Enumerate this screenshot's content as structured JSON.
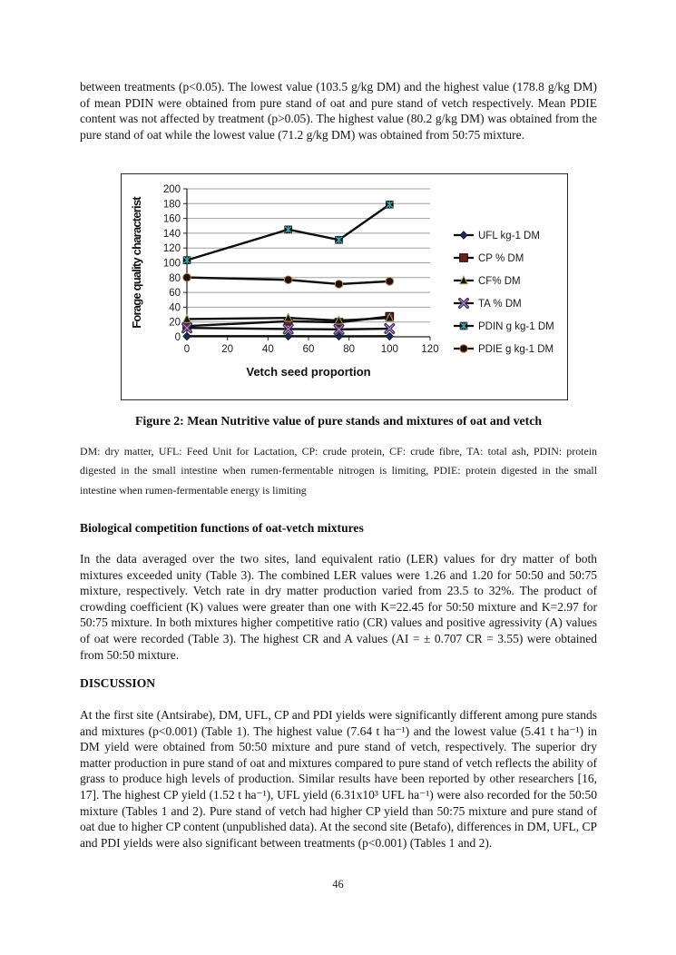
{
  "page": {
    "number": "46"
  },
  "paragraphs": {
    "p1": "between treatments (p<0.05). The lowest value (103.5 g/kg DM) and the highest value (178.8 g/kg DM) of mean PDIN were obtained from pure stand of oat and pure stand of vetch respectively. Mean PDIE content was not affected by treatment (p>0.05). The highest value (80.2 g/kg DM) was obtained from the pure stand of oat while the lowest value (71.2 g/kg DM) was obtained from 50:75 mixture.",
    "p2": "In the data averaged over the two sites, land equivalent ratio (LER) values for dry matter of both mixtures exceeded unity (Table 3). The combined LER values were 1.26 and 1.20 for 50:50 and 50:75 mixture, respectively. Vetch rate in dry matter production varied from 23.5 to 32%. The product of crowding coefficient (K) values were greater than one with K=22.45 for 50:50 mixture and K=2.97 for 50:75 mixture. In both mixtures higher competitive ratio (CR) values and positive agressivity (A) values of oat were recorded (Table 3). The highest CR and A values (AI = ± 0.707 CR = 3.55) were obtained from 50:50 mixture.",
    "p3": "At the first site (Antsirabe), DM, UFL, CP and PDI yields were significantly different among pure stands and mixtures (p<0.001) (Table 1). The highest value (7.64 t ha⁻¹) and the lowest value (5.41 t ha⁻¹) in DM yield were obtained from 50:50 mixture and pure stand of vetch, respectively. The superior dry matter production in pure stand of oat and mixtures compared to pure stand of vetch reflects the ability of grass to produce high levels of production. Similar results have been reported by other researchers [16, 17]. The highest CP yield (1.52 t ha⁻¹), UFL yield (6.31x10³ UFL ha⁻¹) were also recorded for the 50:50 mixture (Tables 1 and 2). Pure stand of vetch had higher CP yield than 50:75 mixture and pure stand of oat due to higher CP content (unpublished data). At the second site (Betafo), differences in DM, UFL, CP and PDI yields were also significant between treatments (p<0.001) (Tables 1 and 2)."
  },
  "headings": {
    "competition": "Biological competition functions of oat-vetch mixtures",
    "discussion": "DISCUSSION"
  },
  "figure": {
    "caption": "Figure 2: Mean Nutritive value of pure stands and mixtures of oat and vetch",
    "notes": "DM: dry matter, UFL: Feed Unit for Lactation, CP: crude protein, CF: crude fibre, TA: total ash, PDIN: protein digested in the small intestine when rumen-fermentable nitrogen is limiting, PDIE: protein digested in the small intestine when rumen-fermentable energy is limiting"
  },
  "chart_data": {
    "type": "line",
    "title": "",
    "xlabel": "Vetch seed proportion",
    "ylabel": "Forage quality characterist",
    "x": [
      0,
      50,
      75,
      100
    ],
    "xlim": [
      0,
      120
    ],
    "ylim": [
      0,
      200
    ],
    "x_ticks": [
      0,
      20,
      40,
      60,
      80,
      100,
      120
    ],
    "y_ticks": [
      0,
      20,
      40,
      60,
      80,
      100,
      120,
      140,
      160,
      180,
      200
    ],
    "grid": true,
    "legend_position": "right",
    "line_color": "#0d0d0d",
    "grid_color": "#a0a0a0",
    "series": [
      {
        "name": "UFL kg-1 DM",
        "marker": "diamond",
        "color": "#1b2a55",
        "values": [
          0.8,
          0.8,
          0.7,
          0.8
        ]
      },
      {
        "name": "CP % DM",
        "marker": "square",
        "color": "#6e2020",
        "values": [
          14.5,
          21,
          19.5,
          27.5
        ]
      },
      {
        "name": "CF% DM",
        "marker": "triangle",
        "color": "#14140a",
        "values": [
          24,
          25.5,
          22,
          25.5
        ]
      },
      {
        "name": "TA % DM",
        "marker": "x",
        "color": "#4a2d63",
        "values": [
          12,
          10.5,
          10,
          11
        ]
      },
      {
        "name": "PDIN g kg-1 DM",
        "marker": "star",
        "color": "#3fa0a8",
        "values": [
          103.5,
          145,
          131,
          178.8
        ]
      },
      {
        "name": "PDIE g kg-1 DM",
        "marker": "circle",
        "color": "#1f0f0a",
        "values": [
          80.2,
          77,
          71.2,
          75
        ]
      }
    ]
  }
}
